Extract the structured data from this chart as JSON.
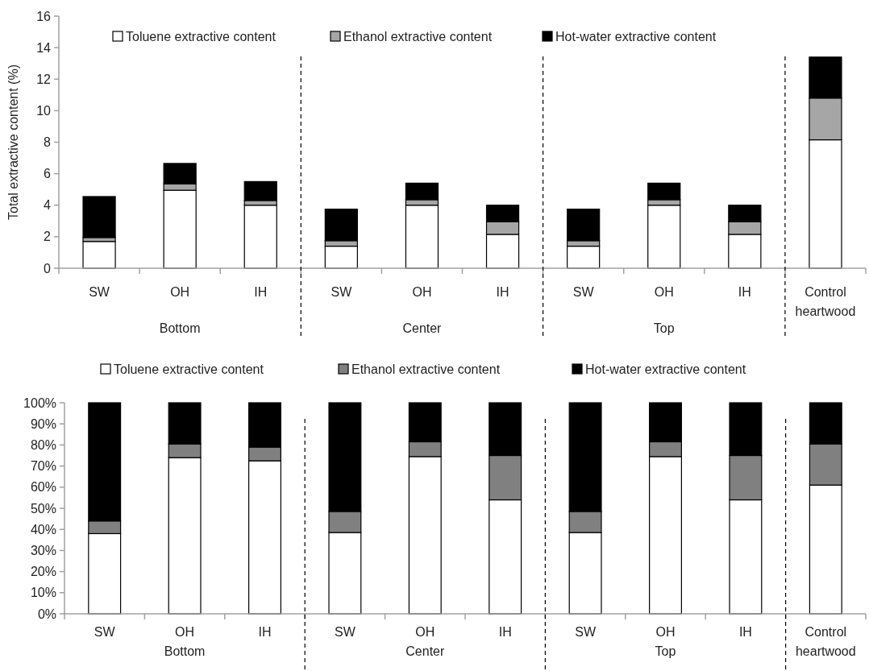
{
  "chart_data": [
    {
      "type": "bar",
      "stacked": true,
      "ylabel": "Total extractive content (%)",
      "categories": [
        "SW",
        "OH",
        "IH",
        "SW",
        "OH",
        "IH",
        "SW",
        "OH",
        "IH",
        "Control heartwood"
      ],
      "series": [
        {
          "name": "Toluene extractive content",
          "color": "#ffffff",
          "values": [
            1.7,
            4.95,
            4.0,
            1.4,
            4.0,
            2.15,
            1.4,
            4.0,
            2.15,
            8.15
          ]
        },
        {
          "name": "Ethanol extractive content",
          "color": "#a6a6a6",
          "values": [
            0.25,
            0.4,
            0.3,
            0.35,
            0.35,
            0.8,
            0.35,
            0.35,
            0.8,
            2.65
          ]
        },
        {
          "name": "Hot-water extractive content",
          "color": "#000000",
          "values": [
            2.6,
            1.3,
            1.2,
            2.0,
            1.05,
            1.05,
            2.0,
            1.05,
            1.05,
            2.6
          ]
        }
      ],
      "ylim": [
        0,
        16
      ],
      "yticks": [
        0,
        2,
        4,
        6,
        8,
        10,
        12,
        14,
        16
      ],
      "grid": false,
      "legend": "top",
      "annotations": [
        "Bottom",
        "Center",
        "Top"
      ]
    },
    {
      "type": "bar",
      "stacked": true,
      "categories": [
        "SW",
        "OH",
        "IH",
        "SW",
        "OH",
        "IH",
        "SW",
        "OH",
        "IH",
        "Control heartwood"
      ],
      "series": [
        {
          "name": "Toluene extractive content",
          "color": "#ffffff",
          "values": [
            38,
            74,
            72.5,
            38.5,
            74.5,
            54,
            38.5,
            74.5,
            54,
            61
          ]
        },
        {
          "name": "Ethanol extractive content",
          "color": "#808080",
          "values": [
            6,
            6.5,
            6.5,
            10,
            7,
            21,
            10,
            7,
            21,
            19.5
          ]
        },
        {
          "name": "Hot-water extractive content",
          "color": "#000000",
          "values": [
            56,
            19.5,
            21,
            51.5,
            18.5,
            25,
            51.5,
            18.5,
            25,
            19.5
          ]
        }
      ],
      "ylim": [
        0,
        100
      ],
      "yticks": [
        {
          "value": 0,
          "label": "0%"
        },
        {
          "value": 10,
          "label": "10%"
        },
        {
          "value": 20,
          "label": "20%"
        },
        {
          "value": 30,
          "label": "30%"
        },
        {
          "value": 40,
          "label": "40%"
        },
        {
          "value": 50,
          "label": "50%"
        },
        {
          "value": 60,
          "label": "60%"
        },
        {
          "value": 70,
          "label": "70%"
        },
        {
          "value": 80,
          "label": "80%"
        },
        {
          "value": 90,
          "label": "90%"
        },
        {
          "value": 100,
          "label": "100%"
        }
      ],
      "grid": false,
      "legend": "top",
      "annotations": [
        "Bottom",
        "Center",
        "Top"
      ]
    }
  ]
}
